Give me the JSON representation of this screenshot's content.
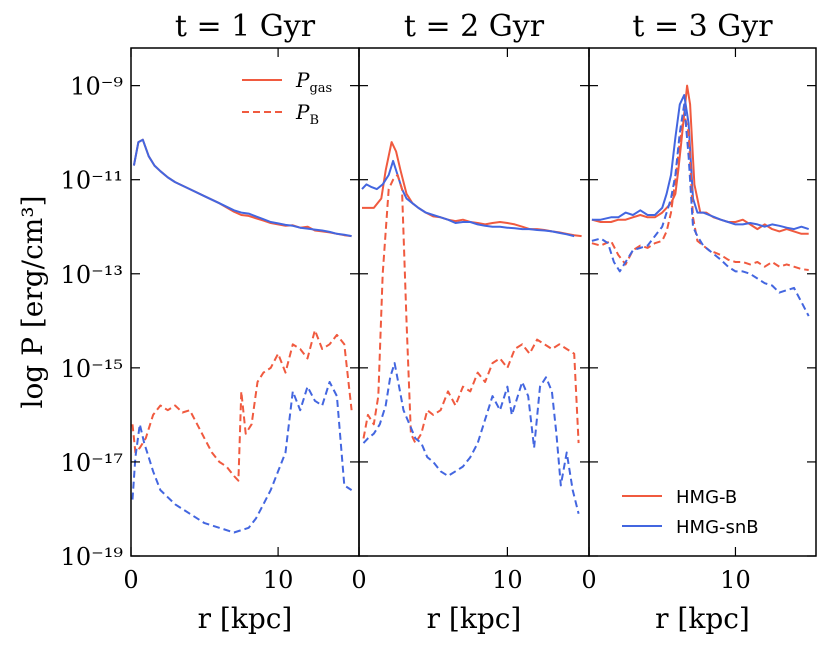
{
  "colors": {
    "hmg_b": "#f05a3f",
    "hmg_snb": "#4366e0",
    "axis": "#000000"
  },
  "chart_data": {
    "type": "line",
    "ylabel": "log P [erg/cm³]",
    "xlabel": "r [kpc]",
    "y_scale": "log",
    "ylim_log10": [
      -19,
      -8.2
    ],
    "ytick_labels": [
      "10⁻¹⁹",
      "10⁻¹⁷",
      "10⁻¹⁵",
      "10⁻¹³",
      "10⁻¹¹",
      "10⁻⁹"
    ],
    "ytick_values_log10": [
      -19,
      -17,
      -15,
      -13,
      -11,
      -9
    ],
    "legend_linestyle": {
      "location": "upper-right of first panel",
      "entries": [
        {
          "label": "P_gas",
          "main": "P",
          "sub": "gas",
          "style": "solid"
        },
        {
          "label": "P_B",
          "main": "P",
          "sub": "B",
          "style": "dashed"
        }
      ]
    },
    "legend_runs": {
      "location": "lower-right of third panel",
      "entries": [
        {
          "label": "HMG-B",
          "color": "#f05a3f"
        },
        {
          "label": "HMG-snB",
          "color": "#4366e0"
        }
      ]
    },
    "panels": [
      {
        "title": "t = 1 Gyr",
        "xlim": [
          0,
          15.5
        ],
        "xtick_values": [
          0,
          10
        ],
        "xtick_labels": [
          "0",
          "10"
        ],
        "series": [
          {
            "run": "HMG-B",
            "quantity": "P_gas",
            "style": "solid",
            "x": [
              0.2,
              0.5,
              0.8,
              1.2,
              1.6,
              2,
              2.5,
              3,
              4,
              5,
              6,
              7,
              7.5,
              8,
              8.5,
              9,
              9.5,
              10,
              10.5,
              11,
              11.5,
              12,
              12.5,
              13,
              13.5,
              14,
              14.5,
              15
            ],
            "log10y": [
              -10.7,
              -10.2,
              -10.15,
              -10.5,
              -10.7,
              -10.82,
              -10.95,
              -11.05,
              -11.2,
              -11.35,
              -11.5,
              -11.68,
              -11.75,
              -11.77,
              -11.82,
              -11.87,
              -11.92,
              -11.95,
              -11.98,
              -11.97,
              -12.02,
              -12.0,
              -12.08,
              -12.1,
              -12.12,
              -12.15,
              -12.18,
              -12.2
            ]
          },
          {
            "run": "HMG-snB",
            "quantity": "P_gas",
            "style": "solid",
            "x": [
              0.2,
              0.5,
              0.8,
              1.2,
              1.6,
              2,
              2.5,
              3,
              4,
              5,
              6,
              7,
              7.5,
              8,
              8.5,
              9,
              9.5,
              10,
              10.5,
              11,
              11.5,
              12,
              12.5,
              13,
              13.5,
              14,
              14.5,
              15
            ],
            "log10y": [
              -10.7,
              -10.2,
              -10.15,
              -10.5,
              -10.7,
              -10.82,
              -10.95,
              -11.05,
              -11.2,
              -11.35,
              -11.5,
              -11.65,
              -11.7,
              -11.72,
              -11.78,
              -11.84,
              -11.9,
              -11.93,
              -11.96,
              -11.98,
              -12.02,
              -12.04,
              -12.06,
              -12.08,
              -12.11,
              -12.15,
              -12.17,
              -12.2
            ]
          },
          {
            "run": "HMG-B",
            "quantity": "P_B",
            "style": "dashed",
            "x": [
              0.1,
              0.3,
              0.6,
              1,
              1.5,
              2,
              2.5,
              3,
              3.5,
              4,
              4.5,
              5,
              5.5,
              6,
              6.5,
              7,
              7.3,
              7.5,
              7.8,
              8.2,
              8.6,
              9,
              9.5,
              10,
              10.5,
              11,
              11.5,
              12,
              12.5,
              13,
              13.5,
              14,
              14.5,
              15
            ],
            "log10y": [
              -16.2,
              -16.8,
              -16.7,
              -16.5,
              -16.0,
              -15.8,
              -15.9,
              -15.8,
              -15.95,
              -15.9,
              -16.2,
              -16.5,
              -16.8,
              -17.0,
              -17.1,
              -17.3,
              -17.4,
              -15.5,
              -16.4,
              -16.2,
              -15.3,
              -15.1,
              -15.0,
              -14.7,
              -15.1,
              -14.5,
              -14.6,
              -14.8,
              -14.2,
              -14.6,
              -14.5,
              -14.3,
              -14.5,
              -15.9
            ]
          },
          {
            "run": "HMG-snB",
            "quantity": "P_B",
            "style": "dashed",
            "x": [
              0.1,
              0.3,
              0.6,
              0.9,
              1.2,
              1.5,
              2,
              3,
              4,
              5,
              6,
              7,
              8,
              8.5,
              9,
              9.5,
              10,
              10.5,
              11,
              11.5,
              12,
              12.5,
              13,
              13.5,
              14,
              14.5,
              15
            ],
            "log10y": [
              -17.8,
              -16.9,
              -16.2,
              -16.6,
              -16.9,
              -17.2,
              -17.6,
              -17.9,
              -18.1,
              -18.3,
              -18.4,
              -18.5,
              -18.4,
              -18.2,
              -17.9,
              -17.6,
              -17.2,
              -16.8,
              -15.5,
              -15.9,
              -15.4,
              -15.7,
              -15.8,
              -15.3,
              -15.6,
              -17.5,
              -17.6
            ]
          }
        ]
      },
      {
        "title": "t = 2 Gyr",
        "xlim": [
          0,
          15.5
        ],
        "xtick_values": [
          0,
          10
        ],
        "xtick_labels": [
          "0",
          "10"
        ],
        "series": [
          {
            "run": "HMG-B",
            "quantity": "P_gas",
            "style": "solid",
            "x": [
              0.2,
              0.5,
              1,
              1.5,
              1.8,
              2.2,
              2.5,
              2.8,
              3.2,
              3.6,
              4,
              4.5,
              5,
              5.5,
              6,
              6.5,
              7,
              7.5,
              8,
              8.5,
              9,
              9.5,
              10,
              10.5,
              11,
              11.5,
              12,
              12.5,
              13,
              13.5,
              14,
              14.5,
              15
            ],
            "log10y": [
              -11.6,
              -11.6,
              -11.6,
              -11.4,
              -10.8,
              -10.2,
              -10.4,
              -10.8,
              -11.3,
              -11.5,
              -11.6,
              -11.7,
              -11.78,
              -11.8,
              -11.85,
              -11.88,
              -11.85,
              -11.9,
              -11.92,
              -11.95,
              -11.92,
              -11.9,
              -11.92,
              -11.95,
              -12.0,
              -12.05,
              -12.05,
              -12.07,
              -12.1,
              -12.12,
              -12.15,
              -12.18,
              -12.2
            ]
          },
          {
            "run": "HMG-snB",
            "quantity": "P_gas",
            "style": "solid",
            "x": [
              0.2,
              0.5,
              0.8,
              1.2,
              1.6,
              2,
              2.3,
              2.6,
              2.9,
              3.2,
              3.6,
              4,
              4.5,
              5,
              5.5,
              6,
              6.5,
              7,
              7.5,
              8,
              8.5,
              9,
              9.5,
              10,
              10.5,
              11,
              11.5,
              12,
              12.5,
              13,
              13.5,
              14,
              14.5,
              15
            ],
            "log10y": [
              -11.2,
              -11.1,
              -11.15,
              -11.2,
              -11.1,
              -10.9,
              -10.6,
              -10.9,
              -11.2,
              -11.4,
              -11.5,
              -11.6,
              -11.7,
              -11.75,
              -11.8,
              -11.85,
              -11.92,
              -11.9,
              -11.9,
              -11.95,
              -11.98,
              -12.0,
              -12.0,
              -12.02,
              -12.03,
              -12.05,
              -12.05,
              -12.07,
              -12.08,
              -12.1,
              -12.13,
              -12.16,
              -12.2
            ]
          },
          {
            "run": "HMG-B",
            "quantity": "P_B",
            "style": "dashed",
            "x": [
              0.3,
              0.6,
              1,
              1.3,
              1.6,
              2,
              2.3,
              2.6,
              2.9,
              3.2,
              3.5,
              3.8,
              4.2,
              4.6,
              5,
              5.5,
              6,
              6.5,
              7,
              7.5,
              8,
              8.5,
              9,
              9.5,
              10,
              10.5,
              11,
              11.5,
              12,
              12.5,
              13,
              13.5,
              14,
              14.5,
              14.8
            ],
            "log10y": [
              -16.5,
              -16.0,
              -16.2,
              -15.6,
              -13.0,
              -11.2,
              -11.0,
              -10.9,
              -11.2,
              -14.0,
              -16.4,
              -16.6,
              -16.4,
              -15.9,
              -16.0,
              -15.9,
              -15.5,
              -15.8,
              -15.4,
              -15.5,
              -15.1,
              -15.3,
              -14.9,
              -14.8,
              -15.0,
              -14.6,
              -14.5,
              -14.7,
              -14.4,
              -14.5,
              -14.6,
              -14.5,
              -14.6,
              -14.7,
              -16.6
            ]
          },
          {
            "run": "HMG-snB",
            "quantity": "P_B",
            "style": "dashed",
            "x": [
              0.3,
              0.6,
              1,
              1.4,
              1.8,
              2.1,
              2.4,
              2.7,
              3,
              3.4,
              3.8,
              4.2,
              4.6,
              5,
              5.5,
              6,
              6.5,
              7,
              7.5,
              8,
              8.5,
              9,
              9.5,
              10,
              10.3,
              10.6,
              11,
              11.4,
              11.8,
              12.2,
              12.6,
              13,
              13.3,
              13.6,
              14,
              14.4,
              14.8
            ],
            "log10y": [
              -16.6,
              -16.5,
              -16.4,
              -16.2,
              -15.8,
              -15.2,
              -14.9,
              -15.4,
              -15.9,
              -16.2,
              -16.5,
              -16.6,
              -16.9,
              -17.0,
              -17.2,
              -17.3,
              -17.2,
              -17.1,
              -16.9,
              -16.6,
              -16.1,
              -15.6,
              -15.9,
              -15.4,
              -16.0,
              -15.7,
              -15.3,
              -15.6,
              -16.7,
              -15.4,
              -15.2,
              -15.5,
              -16.4,
              -17.5,
              -16.8,
              -17.6,
              -18.1
            ]
          }
        ]
      },
      {
        "title": "t = 3 Gyr",
        "xlim": [
          0,
          15.5
        ],
        "xtick_values": [
          0,
          10
        ],
        "xtick_labels": [
          "0",
          "10"
        ],
        "series": [
          {
            "run": "HMG-B",
            "quantity": "P_gas",
            "style": "solid",
            "x": [
              0.2,
              0.8,
              1.5,
              2,
              2.5,
              3,
              3.5,
              4,
              4.5,
              5,
              5.3,
              5.6,
              5.9,
              6.1,
              6.3,
              6.5,
              6.7,
              6.9,
              7.2,
              7.6,
              8,
              8.5,
              9,
              9.5,
              10,
              10.5,
              11,
              11.5,
              12,
              12.5,
              13,
              13.5,
              14,
              14.5,
              15
            ],
            "log10y": [
              -11.85,
              -11.9,
              -11.9,
              -11.85,
              -11.85,
              -11.8,
              -11.75,
              -11.8,
              -11.8,
              -11.7,
              -11.6,
              -11.5,
              -11.3,
              -10.8,
              -10.2,
              -9.6,
              -9.0,
              -9.4,
              -11.1,
              -11.7,
              -11.7,
              -11.8,
              -11.85,
              -11.9,
              -11.9,
              -11.85,
              -11.95,
              -12.05,
              -11.95,
              -12.05,
              -12.1,
              -12.05,
              -12.1,
              -12.15,
              -12.15
            ]
          },
          {
            "run": "HMG-snB",
            "quantity": "P_gas",
            "style": "solid",
            "x": [
              0.2,
              0.8,
              1.5,
              2,
              2.5,
              3,
              3.5,
              4,
              4.5,
              5,
              5.3,
              5.6,
              5.9,
              6.2,
              6.5,
              6.8,
              7.1,
              7.4,
              7.8,
              8.2,
              8.6,
              9,
              9.5,
              10,
              10.5,
              11,
              11.5,
              12,
              12.5,
              13,
              13.5,
              14,
              14.5,
              15
            ],
            "log10y": [
              -11.85,
              -11.85,
              -11.8,
              -11.8,
              -11.7,
              -11.75,
              -11.65,
              -11.75,
              -11.75,
              -11.6,
              -11.3,
              -10.9,
              -10.1,
              -9.4,
              -9.2,
              -9.8,
              -11.4,
              -11.7,
              -11.7,
              -11.75,
              -11.8,
              -11.85,
              -11.9,
              -11.95,
              -11.95,
              -11.92,
              -11.95,
              -12.0,
              -11.95,
              -11.98,
              -12.02,
              -12.05,
              -12.0,
              -12.05
            ]
          },
          {
            "run": "HMG-B",
            "quantity": "P_B",
            "style": "dashed",
            "x": [
              0.2,
              0.8,
              1.5,
              2,
              2.5,
              3,
              3.5,
              4,
              4.5,
              5,
              5.3,
              5.6,
              5.9,
              6.2,
              6.5,
              6.8,
              7.1,
              7.4,
              7.8,
              8.2,
              8.6,
              9,
              9.5,
              10,
              10.5,
              11,
              11.5,
              12,
              12.5,
              13,
              13.5,
              14,
              14.5,
              15
            ],
            "log10y": [
              -12.35,
              -12.4,
              -12.3,
              -12.6,
              -12.8,
              -12.5,
              -12.4,
              -12.45,
              -12.35,
              -12.3,
              -12.1,
              -11.7,
              -11.0,
              -10.2,
              -9.6,
              -10.0,
              -11.8,
              -12.3,
              -12.4,
              -12.5,
              -12.55,
              -12.6,
              -12.7,
              -12.75,
              -12.75,
              -12.8,
              -12.75,
              -12.85,
              -12.75,
              -12.85,
              -12.8,
              -12.85,
              -12.9,
              -12.92
            ]
          },
          {
            "run": "HMG-snB",
            "quantity": "P_B",
            "style": "dashed",
            "x": [
              0.2,
              0.8,
              1.3,
              1.7,
              2.1,
              2.5,
              3,
              3.5,
              4,
              4.5,
              5,
              5.3,
              5.6,
              5.9,
              6.2,
              6.5,
              6.8,
              7.1,
              7.4,
              7.8,
              8.2,
              8.6,
              9,
              9.5,
              10,
              10.5,
              11,
              11.5,
              12,
              12.5,
              13,
              13.5,
              14,
              14.5,
              15
            ],
            "log10y": [
              -12.3,
              -12.25,
              -12.35,
              -12.75,
              -12.95,
              -12.75,
              -12.5,
              -12.45,
              -12.4,
              -12.2,
              -12.0,
              -11.7,
              -11.4,
              -10.9,
              -10.0,
              -9.4,
              -10.5,
              -12.0,
              -12.2,
              -12.4,
              -12.5,
              -12.6,
              -12.7,
              -12.85,
              -12.95,
              -12.95,
              -13.0,
              -13.1,
              -13.2,
              -13.25,
              -13.4,
              -13.35,
              -13.3,
              -13.6,
              -13.9
            ]
          }
        ]
      }
    ]
  }
}
